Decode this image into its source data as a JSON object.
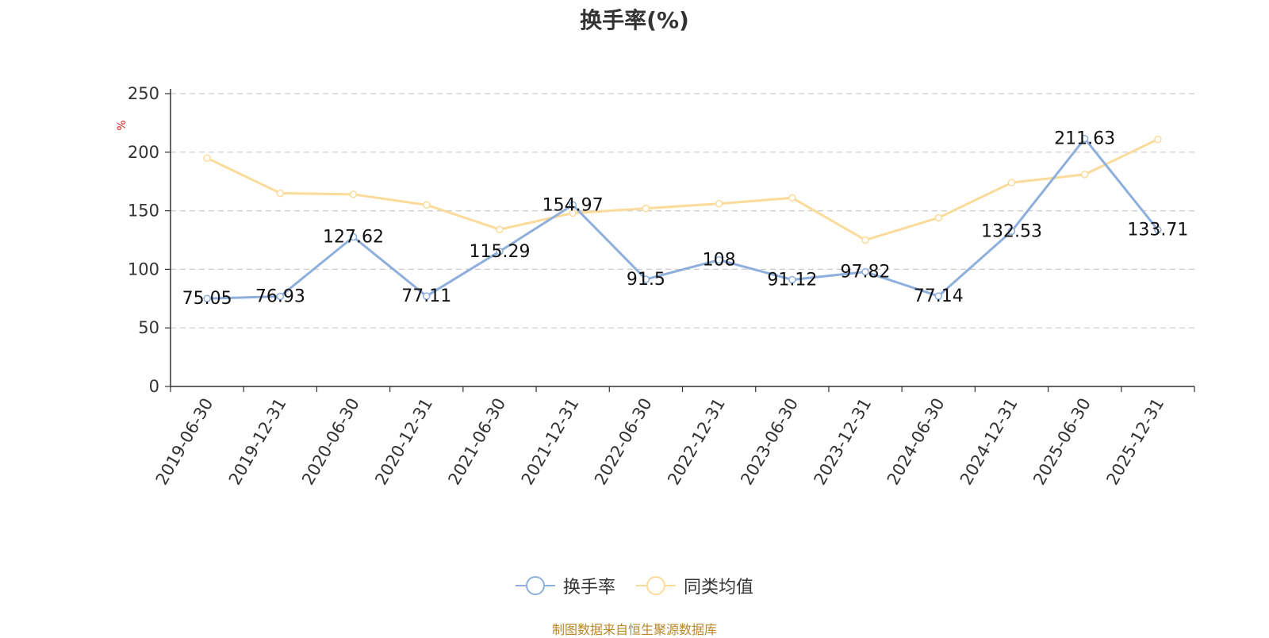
{
  "chart_data": {
    "type": "line",
    "title": "换手率(%)",
    "ylabel": "%",
    "ylim": [
      0,
      250
    ],
    "yticks": [
      0,
      50,
      100,
      150,
      200,
      250
    ],
    "grid": true,
    "categories": [
      "2019-06-30",
      "2019-12-31",
      "2020-06-30",
      "2020-12-31",
      "2021-06-30",
      "2021-12-31",
      "2022-06-30",
      "2022-12-31",
      "2023-06-30",
      "2023-12-31",
      "2024-06-30",
      "2024-12-31",
      "2025-06-30",
      "2025-12-31"
    ],
    "series": [
      {
        "name": "换手率",
        "color": "#8eaedb",
        "values": [
          75.05,
          76.93,
          127.62,
          77.11,
          115.29,
          154.97,
          91.5,
          108,
          91.12,
          97.82,
          77.14,
          132.53,
          211.63,
          133.71
        ],
        "labels": [
          "75.05",
          "76.93",
          "127.62",
          "77.11",
          "115.29",
          "154.97",
          "91.5",
          "108",
          "91.12",
          "97.82",
          "77.14",
          "132.53",
          "211.63",
          "133.71"
        ]
      },
      {
        "name": "同类均值",
        "color": "#fadb9a",
        "values": [
          195,
          165,
          164,
          155,
          134,
          148,
          152,
          156,
          161,
          125,
          144,
          174,
          181,
          211
        ]
      }
    ],
    "legend_position": "bottom-center",
    "unit_color": "#e02020",
    "source": "制图数据来自恒生聚源数据库"
  }
}
